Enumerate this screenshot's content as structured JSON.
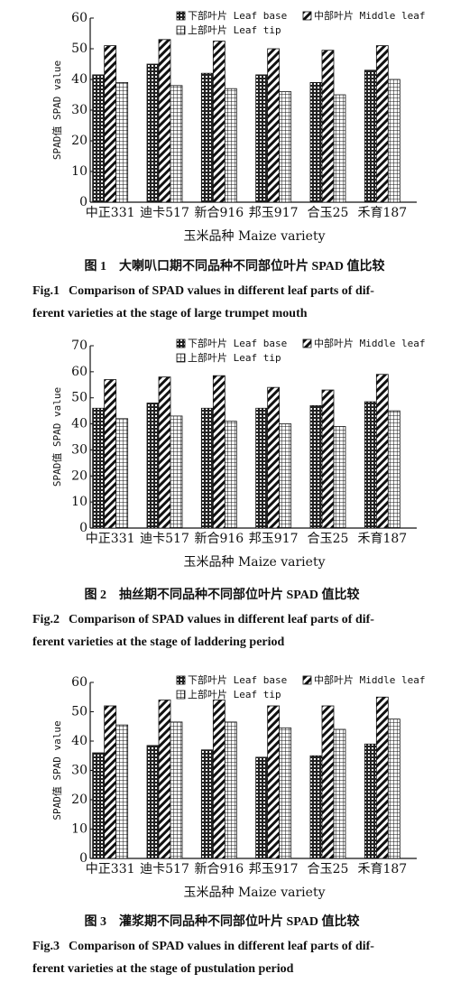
{
  "chart_data": [
    {
      "type": "bar",
      "ylabel": "SPAD值 SPAD value",
      "xlabel": "玉米品种 Maize variety",
      "categories": [
        "中正331",
        "迪卡517",
        "新合916",
        "邦玉917",
        "合玉25",
        "禾育187"
      ],
      "series": [
        {
          "name": "下部叶片 Leaf base",
          "pattern": "checker",
          "values": [
            41.5,
            45,
            42,
            41.5,
            39,
            43
          ]
        },
        {
          "name": "中部叶片 Middle leaf",
          "pattern": "diagonal",
          "values": [
            51,
            53,
            52.5,
            50,
            49.5,
            51
          ]
        },
        {
          "name": "上部叶片 Leaf tip",
          "pattern": "grid",
          "values": [
            39,
            38,
            37,
            36,
            35,
            40
          ]
        }
      ],
      "ylim": [
        0,
        60
      ],
      "yticks": [
        0,
        10,
        20,
        30,
        40,
        50,
        60
      ],
      "caption_label": "图 1",
      "caption": "大喇叭口期不同品种不同部位叶片 SPAD 值比较",
      "caption_en_label": "Fig.1",
      "caption_en": [
        "Comparison of SPAD values in different leaf parts of dif-",
        "ferent varieties at the stage of large trumpet mouth"
      ]
    },
    {
      "type": "bar",
      "ylabel": "SPAD值 SPAD value",
      "xlabel": "玉米品种 Maize variety",
      "categories": [
        "中正331",
        "迪卡517",
        "新合916",
        "邦玉917",
        "合玉25",
        "禾育187"
      ],
      "series": [
        {
          "name": "下部叶片 Leaf base",
          "pattern": "checker",
          "values": [
            46,
            48,
            46,
            46,
            47,
            48.5
          ]
        },
        {
          "name": "中部叶片 Middle leaf",
          "pattern": "diagonal",
          "values": [
            57,
            58,
            58.5,
            54,
            53,
            59
          ]
        },
        {
          "name": "上部叶片 Leaf tip",
          "pattern": "grid",
          "values": [
            42,
            43,
            41,
            40,
            39,
            45
          ]
        }
      ],
      "ylim": [
        0,
        70
      ],
      "yticks": [
        0,
        10,
        20,
        30,
        40,
        50,
        60,
        70
      ],
      "caption_label": "图 2",
      "caption": "抽丝期不同品种不同部位叶片 SPAD 值比较",
      "caption_en_label": "Fig.2",
      "caption_en": [
        "Comparison of SPAD values in different leaf parts of dif-",
        "ferent varieties at the stage of laddering period"
      ]
    },
    {
      "type": "bar",
      "ylabel": "SPAD值 SPAD value",
      "xlabel": "玉米品种 Maize variety",
      "categories": [
        "中正331",
        "迪卡517",
        "新合916",
        "邦玉917",
        "合玉25",
        "禾育187"
      ],
      "series": [
        {
          "name": "下部叶片 Leaf base",
          "pattern": "checker",
          "values": [
            36,
            38.5,
            37,
            34.5,
            35,
            39
          ]
        },
        {
          "name": "中部叶片 Middle leaf",
          "pattern": "diagonal",
          "values": [
            52,
            54,
            54,
            52,
            52,
            55
          ]
        },
        {
          "name": "上部叶片 Leaf tip",
          "pattern": "grid",
          "values": [
            45.5,
            46.5,
            46.5,
            44.5,
            44,
            47.5
          ]
        }
      ],
      "ylim": [
        0,
        60
      ],
      "yticks": [
        0,
        10,
        20,
        30,
        40,
        50,
        60
      ],
      "caption_label": "图 3",
      "caption": "灌浆期不同品种不同部位叶片 SPAD 值比较",
      "caption_en_label": "Fig.3",
      "caption_en": [
        "Comparison of SPAD values in different leaf parts of dif-",
        "ferent varieties at the stage of pustulation period"
      ]
    }
  ]
}
